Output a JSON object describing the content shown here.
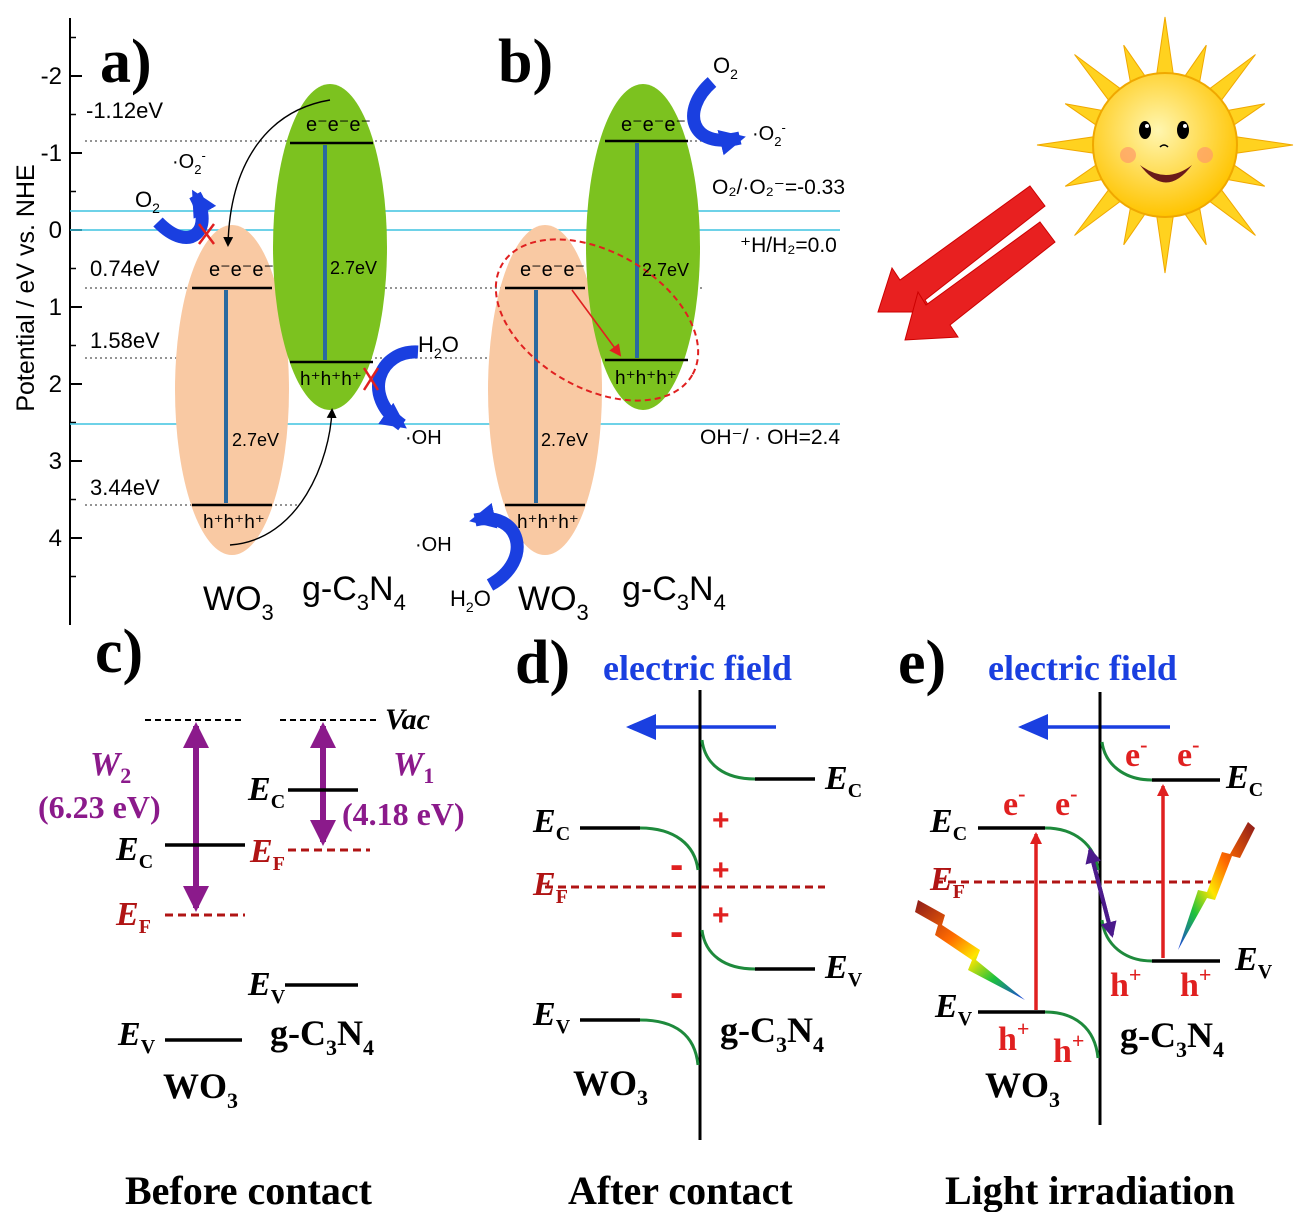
{
  "panels": {
    "a": "a)",
    "b": "b)",
    "c": "c)",
    "d": "d)",
    "e": "e)"
  },
  "axis": {
    "label": "Potential / eV vs. NHE",
    "ticks": [
      "-2",
      "-1",
      "0",
      "1",
      "2",
      "3",
      "4"
    ]
  },
  "panel_a": {
    "levels": [
      "-1.12eV",
      "0.74eV",
      "1.58eV",
      "3.44eV"
    ],
    "wo3_electrons": "e⁻e⁻e⁻",
    "wo3_holes": "h⁺h⁺h⁺",
    "cn_electrons": "e⁻e⁻e⁻",
    "cn_holes": "h⁺h⁺h⁺",
    "gap_wo3": "2.7eV",
    "gap_cn": "2.7eV",
    "o2": "O",
    "o2_sub": "2",
    "superoxide": "·O",
    "superoxide_sub": "2",
    "superoxide_sup": "-",
    "h2o": "H",
    "h2o_sub": "2",
    "h2o_tail": "O",
    "oh": "·OH",
    "label_wo3": "WO",
    "label_wo3_sub": "3",
    "label_cn": "g-C",
    "label_cn_sub1": "3",
    "label_cn_mid": "N",
    "label_cn_sub2": "4"
  },
  "panel_b": {
    "wo3_electrons": "e⁻e⁻e⁻",
    "wo3_holes": "h⁺h⁺h⁺",
    "cn_electrons": "e⁻e⁻e⁻",
    "cn_holes": "h⁺h⁺h⁺",
    "gap_wo3": "2.7eV",
    "gap_cn": "2.7eV",
    "o2": "O",
    "o2_sub": "2",
    "superoxide": "·O",
    "superoxide_sub": "2",
    "superoxide_sup": "-",
    "oh": "·OH",
    "h2o": "H",
    "h2o_sub": "2",
    "h2o_tail": "O",
    "ref_o2": "O₂/·O₂⁻=-0.33",
    "ref_h": "⁺H/H₂=0.0",
    "ref_oh": "OH⁻/ · OH=2.4",
    "label_wo3": "WO",
    "label_wo3_sub": "3",
    "label_cn": "g-C",
    "label_cn_sub1": "3",
    "label_cn_mid": "N",
    "label_cn_sub2": "4"
  },
  "panel_c": {
    "vac": "Vac",
    "w2": "W",
    "w2_sub": "2",
    "w2_val": "(6.23 eV)",
    "w1": "W",
    "w1_sub": "1",
    "w1_val": "(4.18 eV)",
    "ec": "E",
    "ec_sub": "C",
    "ef": "E",
    "ef_sub": "F",
    "ev": "E",
    "ev_sub": "V",
    "wo3": "WO",
    "wo3_sub": "3",
    "cn": "g-C",
    "cn_sub1": "3",
    "cn_mid": "N",
    "cn_sub2": "4",
    "caption": "Before contact"
  },
  "panel_d": {
    "field": "electric field",
    "ec": "E",
    "ec_sub": "C",
    "ef": "E",
    "ef_sub": "F",
    "ev": "E",
    "ev_sub": "V",
    "plus": "+",
    "minus": "-",
    "wo3": "WO",
    "wo3_sub": "3",
    "cn": "g-C",
    "cn_sub1": "3",
    "cn_mid": "N",
    "cn_sub2": "4",
    "caption": "After contact"
  },
  "panel_e": {
    "field": "electric field",
    "ec": "E",
    "ec_sub": "C",
    "ef": "E",
    "ef_sub": "F",
    "ev": "E",
    "ev_sub": "V",
    "electron": "e",
    "electron_sup": "-",
    "hole": "h",
    "hole_sup": "+",
    "wo3": "WO",
    "wo3_sub": "3",
    "cn": "g-C",
    "cn_sub1": "3",
    "cn_mid": "N",
    "cn_sub2": "4",
    "caption": "Light irradiation"
  },
  "colors": {
    "wo3_fill": "#f9c9a3",
    "cn_fill": "#7cc21f",
    "arrow_blue": "#1a3fe0",
    "purple": "#8b1a8b",
    "dark_red": "#b01414",
    "red": "#e02020",
    "band_green": "#1e8a3c",
    "cyan": "#3fc4e0",
    "sun_yellow": "#ffd21f"
  }
}
